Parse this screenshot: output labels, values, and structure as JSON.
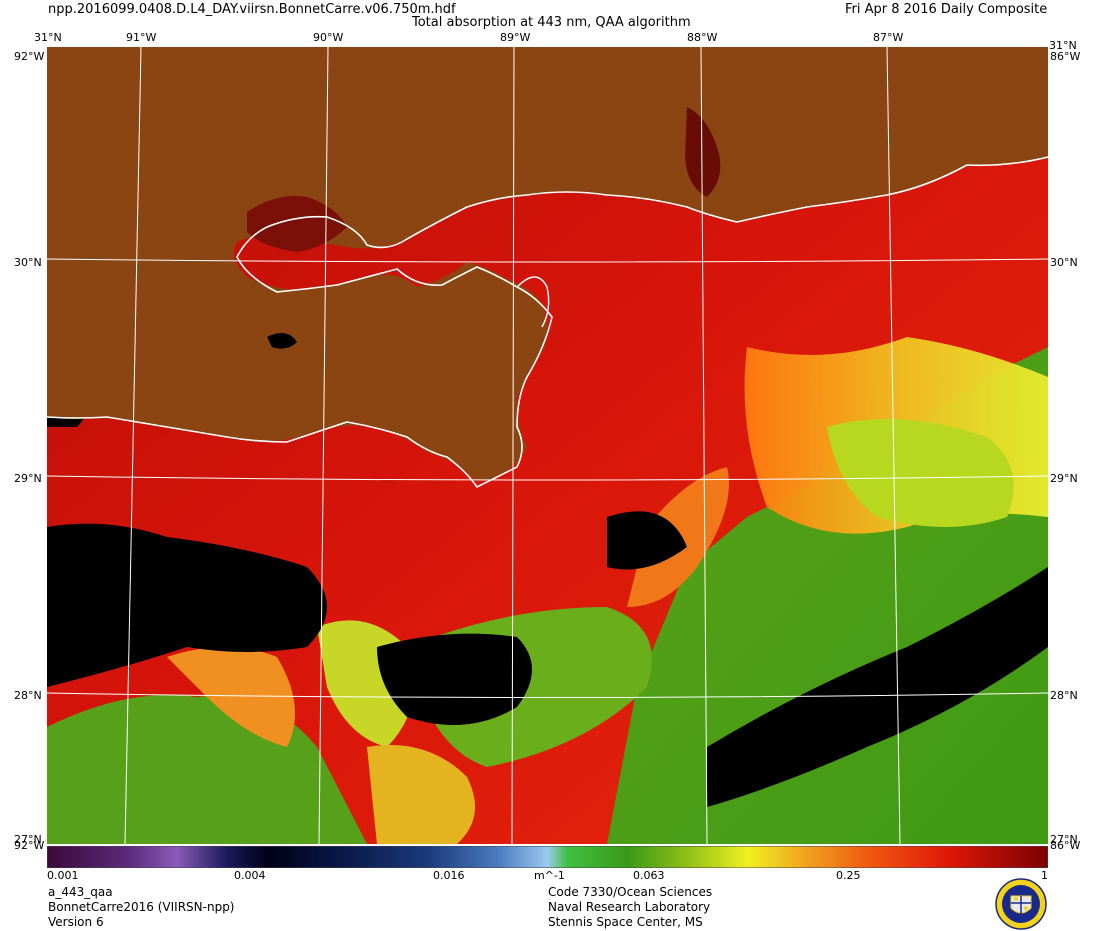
{
  "header": {
    "filename": "npp.2016099.0408.D.L4_DAY.viirsn.BonnetCarre.v06.750m.hdf",
    "title": "Total absorption at 443 nm, QAA algorithm",
    "date": "Fri Apr  8 2016 Daily Composite"
  },
  "map": {
    "longitude_labels": [
      "91°W",
      "90°W",
      "89°W",
      "88°W",
      "87°W"
    ],
    "latitude_labels": [
      "31°N",
      "30°N",
      "29°N",
      "28°N"
    ],
    "corner_labels": {
      "top_left_lat": "31°N",
      "top_left_lon": "92°W",
      "top_right_lat": "31°N",
      "top_right_lon": "86°W",
      "bottom_left_lat": "27°N",
      "bottom_left_lon": "92°W",
      "bottom_right_lat": "27°N",
      "bottom_right_lon": "86°W"
    },
    "colors": {
      "land": "#8B4513",
      "no_data": "#000000",
      "coastline": "#ffffff",
      "graticule": "#ffffff"
    },
    "legend": {
      "ticks": [
        "0.001",
        "0.004",
        "0.016",
        "0.063",
        "0.25",
        "1"
      ],
      "unit": "m^-1",
      "scale": "log",
      "min": 0.001,
      "max": 1
    }
  },
  "footer": {
    "product": "a_443_qaa",
    "region": "BonnetCarre2016 (VIIRSN-npp)",
    "version": "Version 6",
    "org_line1": "Code 7330/Ocean Sciences",
    "org_line2": "Naval Research Laboratory",
    "org_line3": "Stennis Space Center, MS"
  }
}
